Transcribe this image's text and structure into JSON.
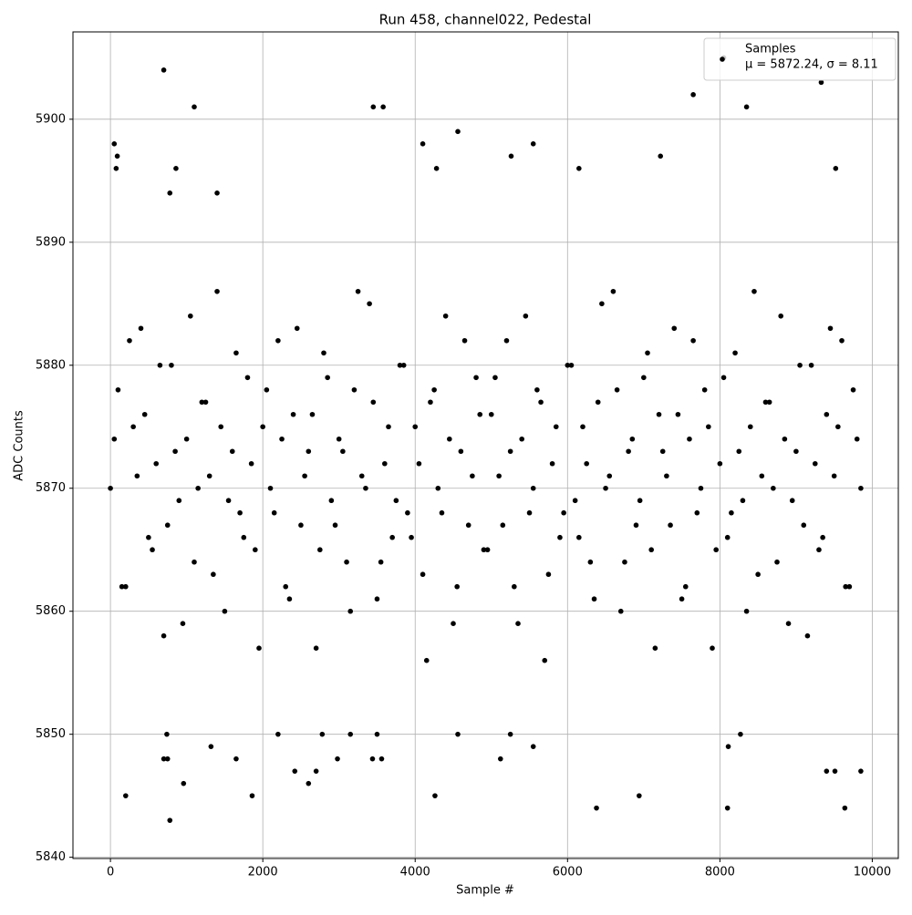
{
  "chart_data": {
    "type": "scatter",
    "title": "Run 458, channel022, Pedestal",
    "x_label": "Sample #",
    "y_label": "ADC Counts",
    "xlim": [
      -492,
      10342
    ],
    "ylim": [
      5839.9,
      5907.1
    ],
    "xticks": [
      0,
      2000,
      4000,
      6000,
      8000,
      10000
    ],
    "yticks": [
      5840,
      5850,
      5860,
      5870,
      5880,
      5890,
      5900
    ],
    "grid": true,
    "legend_position": "upper right",
    "series": [
      {
        "name": "Samples",
        "stats_label": "μ = 5872.24, σ = 8.11",
        "color": "#000000",
        "x": [
          0,
          100,
          200,
          300,
          400,
          500,
          600,
          700,
          800,
          900,
          1000,
          1100,
          1200,
          1300,
          1400,
          1500,
          1600,
          1700,
          1800,
          1900,
          2000,
          2100,
          2200,
          2300,
          2400,
          2500,
          2600,
          2700,
          2800,
          2900,
          3000,
          3100,
          3200,
          3300,
          3400,
          3500,
          3600,
          3700,
          3800,
          3900,
          4000,
          4100,
          4200,
          4300,
          4400,
          4500,
          4600,
          4700,
          4800,
          4900,
          5000,
          5100,
          5200,
          5300,
          5400,
          5500,
          5600,
          5700,
          5800,
          5900,
          6000,
          6100,
          6200,
          6300,
          6400,
          6500,
          6600,
          6700,
          6800,
          6900,
          7000,
          7100,
          7200,
          7300,
          7400,
          7500,
          7600,
          7700,
          7800,
          7900,
          8000,
          8100,
          8200,
          8300,
          8400,
          8500,
          8600,
          8700,
          8800,
          8900,
          9000,
          9100,
          9200,
          9300,
          9400,
          9500,
          9600,
          9700,
          9800,
          50,
          150,
          250,
          350,
          450,
          550,
          650,
          750,
          850,
          950,
          1050,
          1150,
          1250,
          1350,
          1450,
          1550,
          1650,
          1750,
          1850,
          1950,
          2050,
          2150,
          2250,
          2350,
          2450,
          2550,
          2650,
          2750,
          2850,
          2950,
          3050,
          3150,
          3250,
          3350,
          3450,
          3550,
          3650,
          3750,
          3850,
          3950,
          4050,
          4150,
          4250,
          4350,
          4450,
          4550,
          4650,
          4750,
          4850,
          4950,
          5050,
          5150,
          5250,
          5350,
          5450,
          5550,
          5650,
          5750,
          5850,
          5950,
          6050,
          6150,
          6250,
          6350,
          6450,
          6550,
          6650,
          6750,
          6850,
          6950,
          7050,
          7150,
          7250,
          7350,
          7450,
          7550,
          7650,
          7750,
          7850,
          7950,
          8050,
          8150,
          8250,
          8350,
          8450,
          8550,
          8650,
          8750,
          8850,
          8950,
          9050,
          9150,
          9250,
          9350,
          9450,
          9550,
          9650,
          9750,
          9850,
          700,
          1100,
          8050,
          7650,
          9330,
          8350,
          3450,
          3580,
          4560,
          50,
          4100,
          5550,
          75,
          860,
          6150,
          4280,
          9520,
          7220,
          5260,
          90,
          780,
          1400,
          200,
          780,
          960,
          1860,
          2600,
          4260,
          6380,
          6940,
          8100,
          9640,
          2420,
          2700,
          9400,
          9510,
          9850,
          700,
          750,
          1650,
          3440,
          3560,
          5120,
          2980,
          8110,
          5550,
          1320,
          5250,
          8270,
          2200,
          3500,
          2780,
          4560,
          3150,
          740
        ],
        "values": [
          5870,
          5878,
          5862,
          5875,
          5883,
          5866,
          5872,
          5858,
          5880,
          5869,
          5874,
          5864,
          5877,
          5871,
          5886,
          5860,
          5873,
          5868,
          5879,
          5865,
          5875,
          5870,
          5882,
          5862,
          5876,
          5867,
          5873,
          5857,
          5881,
          5869,
          5874,
          5864,
          5878,
          5871,
          5885,
          5861,
          5872,
          5866,
          5880,
          5868,
          5875,
          5863,
          5877,
          5870,
          5884,
          5859,
          5873,
          5867,
          5879,
          5865,
          5876,
          5871,
          5882,
          5862,
          5874,
          5868,
          5878,
          5856,
          5872,
          5866,
          5880,
          5869,
          5875,
          5864,
          5877,
          5870,
          5886,
          5860,
          5873,
          5867,
          5879,
          5865,
          5876,
          5871,
          5883,
          5861,
          5874,
          5868,
          5878,
          5857,
          5872,
          5866,
          5881,
          5869,
          5875,
          5863,
          5877,
          5870,
          5884,
          5859,
          5873,
          5867,
          5880,
          5865,
          5876,
          5871,
          5882,
          5862,
          5874,
          5874,
          5862,
          5882,
          5871,
          5876,
          5865,
          5880,
          5867,
          5873,
          5859,
          5884,
          5870,
          5877,
          5863,
          5875,
          5869,
          5881,
          5866,
          5872,
          5857,
          5878,
          5868,
          5874,
          5861,
          5883,
          5871,
          5876,
          5865,
          5879,
          5867,
          5873,
          5860,
          5886,
          5870,
          5877,
          5864,
          5875,
          5869,
          5880,
          5866,
          5872,
          5856,
          5878,
          5868,
          5874,
          5862,
          5882,
          5871,
          5876,
          5865,
          5879,
          5867,
          5873,
          5859,
          5884,
          5870,
          5877,
          5863,
          5875,
          5868,
          5880,
          5866,
          5872,
          5861,
          5885,
          5871,
          5878,
          5864,
          5874,
          5869,
          5881,
          5857,
          5873,
          5867,
          5876,
          5862,
          5882,
          5870,
          5875,
          5865,
          5879,
          5868,
          5873,
          5860,
          5886,
          5871,
          5877,
          5864,
          5874,
          5869,
          5880,
          5858,
          5872,
          5866,
          5883,
          5875,
          5862,
          5878,
          5870,
          5904,
          5901,
          5905,
          5902,
          5903,
          5901,
          5901,
          5901,
          5899,
          5898,
          5898,
          5898,
          5896,
          5896,
          5896,
          5896,
          5896,
          5897,
          5897,
          5897,
          5894,
          5894,
          5845,
          5843,
          5846,
          5845,
          5846,
          5845,
          5844,
          5845,
          5844,
          5844,
          5847,
          5847,
          5847,
          5847,
          5847,
          5848,
          5848,
          5848,
          5848,
          5848,
          5848,
          5848,
          5849,
          5849,
          5849,
          5850,
          5850,
          5850,
          5850,
          5850,
          5850,
          5850,
          5850
        ]
      }
    ]
  }
}
